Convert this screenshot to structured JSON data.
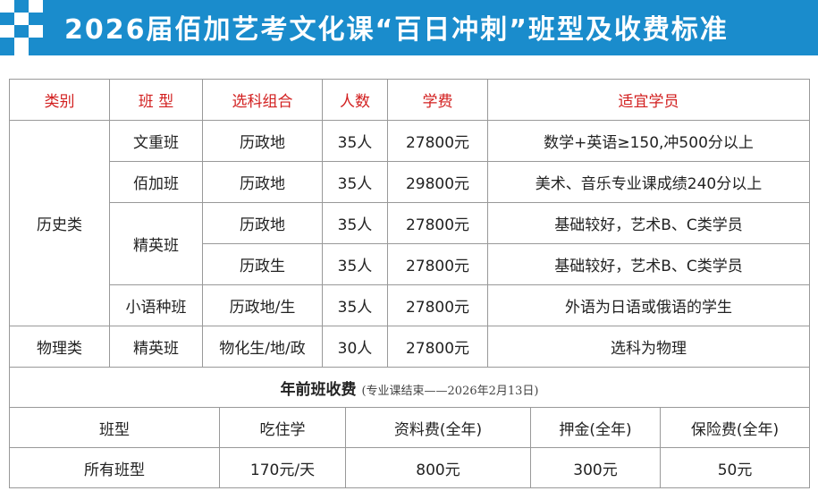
{
  "title": "2026届佰加艺考文化课“百日冲刺”班型及收费标准",
  "colors": {
    "banner": "#1a8ccc",
    "header_text": "#d21f1f"
  },
  "table": {
    "headers": [
      "类别",
      "班 型",
      "选科组合",
      "人数",
      "学费",
      "适宜学员"
    ],
    "categories": [
      "历史类",
      "物理类"
    ],
    "rows": [
      {
        "class": "文重班",
        "subjects": "历政地",
        "size": "35人",
        "fee": "27800元",
        "target": "数学+英语≥150,冲500分以上"
      },
      {
        "class": "佰加班",
        "subjects": "历政地",
        "size": "35人",
        "fee": "29800元",
        "target": "美术、音乐专业课成绩240分以上"
      },
      {
        "class": "精英班",
        "subjects": "历政地",
        "size": "35人",
        "fee": "27800元",
        "target": "基础较好，艺术B、C类学员"
      },
      {
        "class": "",
        "subjects": "历政生",
        "size": "35人",
        "fee": "27800元",
        "target": "基础较好，艺术B、C类学员"
      },
      {
        "class": "小语种班",
        "subjects": "历政地/生",
        "size": "35人",
        "fee": "27800元",
        "target": "外语为日语或俄语的学生"
      },
      {
        "class": "精英班",
        "subjects": "物化生/地/政",
        "size": "30人",
        "fee": "27800元",
        "target": "选科为物理"
      }
    ]
  },
  "fees": {
    "title": "年前班收费",
    "note": "(专业课结束——2026年2月13日)",
    "headers": [
      "班型",
      "吃住学",
      "资料费(全年)",
      "押金(全年)",
      "保险费(全年)"
    ],
    "values": [
      "所有班型",
      "170元/天",
      "800元",
      "300元",
      "50元"
    ]
  }
}
